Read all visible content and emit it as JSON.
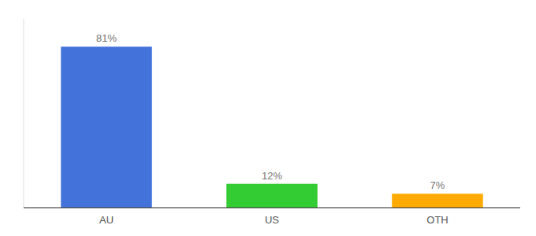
{
  "chart_data": {
    "type": "bar",
    "categories": [
      "AU",
      "US",
      "OTH"
    ],
    "values": [
      81,
      12,
      7
    ],
    "value_labels": [
      "81%",
      "12%",
      "7%"
    ],
    "colors": [
      "#4472db",
      "#33cc33",
      "#ffaa00"
    ],
    "ylim": [
      0,
      95
    ],
    "data_labels": true,
    "tick_labels": "x",
    "grid": false
  }
}
